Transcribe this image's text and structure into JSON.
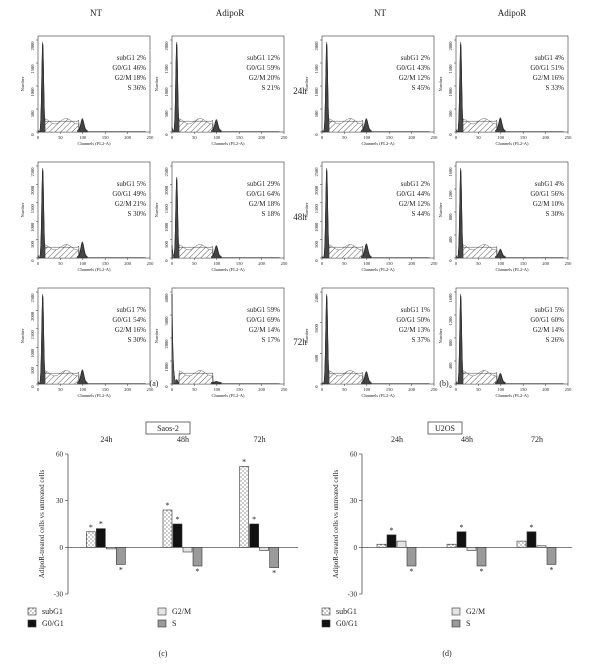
{
  "panel_a": {
    "col_headers": [
      "NT",
      "AdipoR"
    ],
    "time_labels": [
      "24h",
      "48h",
      "72h"
    ],
    "x_axis_label": "Channels (FL2-A)",
    "y_axis_label": "Number",
    "x_ticks": [
      "0",
      "50",
      "100",
      "150",
      "200",
      "250"
    ],
    "panel_label": "(a)",
    "cell_line": "Saos-2"
  },
  "panel_b": {
    "col_headers": [
      "NT",
      "AdipoR"
    ],
    "panel_label": "(b)",
    "cell_line": "U2OS"
  },
  "histograms": [
    {
      "id": "a-nt-24",
      "ymax": 2000,
      "yticks": [
        "0",
        "500",
        "1000",
        "1500",
        "2000"
      ],
      "stats": [
        "subG1 2%",
        "G0/G1 46%",
        "G2/M 18%",
        "S 36%"
      ],
      "g1": 1.0,
      "g2": 0.13,
      "sub": 0.02
    },
    {
      "id": "a-ad-24",
      "ymax": 2000,
      "yticks": [
        "0",
        "500",
        "1000",
        "1500",
        "2000"
      ],
      "stats": [
        "subG1 12%",
        "G0/G1 59%",
        "G2/M 20%",
        "S 21%"
      ],
      "g1": 1.0,
      "g2": 0.12,
      "sub": 0.05
    },
    {
      "id": "b-nt-24",
      "ymax": 2000,
      "yticks": [
        "0",
        "500",
        "1000",
        "1500",
        "2000"
      ],
      "stats": [
        "subG1 2%",
        "G0/G1 43%",
        "G2/M 12%",
        "S 45%"
      ],
      "g1": 1.0,
      "g2": 0.13,
      "sub": 0.02
    },
    {
      "id": "b-ad-24",
      "ymax": 2000,
      "yticks": [
        "0",
        "500",
        "1000",
        "1500",
        "2000"
      ],
      "stats": [
        "subG1 4%",
        "G0/G1 51%",
        "G2/M 16%",
        "S 33%"
      ],
      "g1": 1.0,
      "g2": 0.14,
      "sub": 0.03
    },
    {
      "id": "a-nt-48",
      "ymax": 2500,
      "yticks": [
        "0",
        "500",
        "1000",
        "1500",
        "2000",
        "2500"
      ],
      "stats": [
        "subG1 5%",
        "G0/G1 49%",
        "G2/M 21%",
        "S 30%"
      ],
      "g1": 1.0,
      "g2": 0.16,
      "sub": 0.03
    },
    {
      "id": "a-ad-48",
      "ymax": 2500,
      "yticks": [
        "0",
        "500",
        "1000",
        "1500",
        "2000",
        "2500"
      ],
      "stats": [
        "subG1 29%",
        "G0/G1 64%",
        "G2/M 18%",
        "S 18%"
      ],
      "g1": 0.9,
      "g2": 0.12,
      "sub": 0.14
    },
    {
      "id": "b-nt-48",
      "ymax": 2500,
      "yticks": [
        "0",
        "500",
        "1000",
        "1500",
        "2000",
        "2500"
      ],
      "stats": [
        "subG1 2%",
        "G0/G1 44%",
        "G2/M 12%",
        "S 44%"
      ],
      "g1": 1.0,
      "g2": 0.14,
      "sub": 0.02
    },
    {
      "id": "b-ad-48",
      "ymax": 1600,
      "yticks": [
        "0",
        "400",
        "800",
        "1200",
        "1600"
      ],
      "stats": [
        "subG1 4%",
        "G0/G1 56%",
        "G2/M 10%",
        "S 30%"
      ],
      "g1": 1.0,
      "g2": 0.08,
      "sub": 0.03
    },
    {
      "id": "a-nt-72",
      "ymax": 2500,
      "yticks": [
        "0",
        "500",
        "1000",
        "1500",
        "2000",
        "2500"
      ],
      "stats": [
        "subG1 7%",
        "G0/G1 54%",
        "G2/M 16%",
        "S 30%"
      ],
      "g1": 1.0,
      "g2": 0.14,
      "sub": 0.03
    },
    {
      "id": "a-ad-72",
      "ymax": 4000,
      "yticks": [
        "0",
        "1000",
        "2000",
        "3000",
        "4000"
      ],
      "stats": [
        "subG1 59%",
        "G0/G1 69%",
        "G2/M 14%",
        "S 17%"
      ],
      "g1": 0.05,
      "g2": 0.01,
      "sub": 1.0
    },
    {
      "id": "b-nt-72",
      "ymax": 2400,
      "yticks": [
        "0",
        "800",
        "1600",
        "2400"
      ],
      "stats": [
        "subG1 1%",
        "G0/G1 50%",
        "G2/M 13%",
        "S 37%"
      ],
      "g1": 1.0,
      "g2": 0.12,
      "sub": 0.02
    },
    {
      "id": "b-ad-72",
      "ymax": 1600,
      "yticks": [
        "0",
        "400",
        "800",
        "1200",
        "1600"
      ],
      "stats": [
        "subG1 5%",
        "G0/G1 60%",
        "G2/M 14%",
        "S 26%"
      ],
      "g1": 1.0,
      "g2": 0.1,
      "sub": 0.03
    }
  ],
  "chart_data": [
    {
      "type": "bar",
      "panel_label": "(c)",
      "categories": [
        "24h",
        "48h",
        "72h"
      ],
      "ylabel": "AdipoR-treated cells vs untreated cells",
      "ylim": [
        -30,
        60
      ],
      "yticks": [
        "60",
        "30",
        "0",
        "-30"
      ],
      "series": [
        {
          "name": "subG1",
          "values": [
            10,
            24,
            52
          ],
          "sig": [
            true,
            true,
            true
          ]
        },
        {
          "name": "G0/G1",
          "values": [
            12,
            15,
            15
          ],
          "sig": [
            true,
            true,
            true
          ]
        },
        {
          "name": "G2/M",
          "values": [
            -1,
            -3,
            -2
          ],
          "sig": [
            false,
            false,
            false
          ]
        },
        {
          "name": "S",
          "values": [
            -11,
            -12,
            -13
          ],
          "sig": [
            true,
            true,
            true
          ]
        }
      ],
      "legend_placement": "bottom"
    },
    {
      "type": "bar",
      "panel_label": "(d)",
      "categories": [
        "24h",
        "48h",
        "72h"
      ],
      "ylabel": "AdipoR-treated cells vs untreated cells",
      "ylim": [
        -30,
        60
      ],
      "yticks": [
        "60",
        "30",
        "0",
        "-30"
      ],
      "series": [
        {
          "name": "subG1",
          "values": [
            2,
            2,
            4
          ],
          "sig": [
            false,
            false,
            false
          ]
        },
        {
          "name": "G0/G1",
          "values": [
            8,
            10,
            10
          ],
          "sig": [
            true,
            true,
            true
          ]
        },
        {
          "name": "G2/M",
          "values": [
            4,
            -2,
            1
          ],
          "sig": [
            false,
            false,
            false
          ]
        },
        {
          "name": "S",
          "values": [
            -12,
            -12,
            -11
          ],
          "sig": [
            true,
            true,
            true
          ]
        }
      ],
      "legend_placement": "bottom"
    }
  ],
  "colors": {
    "subG1": "#ffffff",
    "G0/G1": "#111111",
    "G2/M": "#e4e4e4",
    "S": "#9a9a9a",
    "hist_fill": "#444444"
  }
}
